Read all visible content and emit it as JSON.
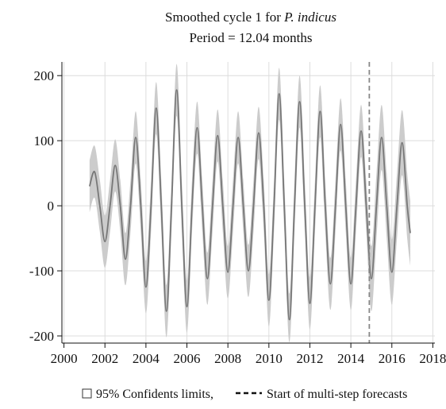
{
  "chart_data": {
    "type": "line",
    "title": {
      "text": "Smoothed cycle 1 for",
      "species": "P. indicus"
    },
    "subtitle": "Period = 12.04 months",
    "x": [
      2001.25,
      2001.5,
      2001.75,
      2002.0,
      2002.25,
      2002.5,
      2002.75,
      2003.0,
      2003.25,
      2003.5,
      2003.75,
      2004.0,
      2004.25,
      2004.5,
      2004.75,
      2005.0,
      2005.25,
      2005.5,
      2005.75,
      2006.0,
      2006.25,
      2006.5,
      2006.75,
      2007.0,
      2007.25,
      2007.5,
      2007.75,
      2008.0,
      2008.25,
      2008.5,
      2008.75,
      2009.0,
      2009.25,
      2009.5,
      2009.75,
      2010.0,
      2010.25,
      2010.5,
      2010.75,
      2011.0,
      2011.25,
      2011.5,
      2011.75,
      2012.0,
      2012.25,
      2012.5,
      2012.75,
      2013.0,
      2013.25,
      2013.5,
      2013.75,
      2014.0,
      2014.25,
      2014.5,
      2014.75,
      2015.0,
      2015.25,
      2015.5,
      2015.75,
      2016.0,
      2016.25,
      2016.5,
      2016.75,
      2016.9
    ],
    "values": [
      30,
      52,
      0,
      -55,
      0,
      62,
      0,
      -82,
      0,
      105,
      0,
      -125,
      0,
      150,
      0,
      -162,
      0,
      178,
      0,
      -155,
      0,
      120,
      0,
      -112,
      0,
      108,
      0,
      -102,
      0,
      105,
      0,
      -100,
      0,
      112,
      0,
      -145,
      0,
      172,
      0,
      -175,
      0,
      160,
      0,
      -150,
      0,
      145,
      0,
      -120,
      0,
      125,
      0,
      -120,
      0,
      115,
      0,
      -112,
      0,
      105,
      0,
      -102,
      0,
      97,
      0,
      -42
    ],
    "color": "#777777",
    "band": {
      "name": "95% Confidents limits,",
      "color": "#cccccc",
      "upper": [
        70,
        92,
        40,
        -15,
        40,
        102,
        40,
        -42,
        40,
        145,
        40,
        -85,
        40,
        190,
        40,
        -122,
        40,
        218,
        40,
        -115,
        40,
        160,
        40,
        -72,
        40,
        148,
        40,
        -62,
        40,
        145,
        40,
        -60,
        40,
        152,
        40,
        -105,
        40,
        212,
        40,
        -135,
        40,
        200,
        40,
        -110,
        40,
        185,
        40,
        -80,
        40,
        165,
        40,
        -80,
        40,
        155,
        40,
        -62,
        50,
        155,
        50,
        -52,
        50,
        147,
        50,
        8
      ],
      "lower": [
        -10,
        12,
        -40,
        -95,
        -40,
        22,
        -40,
        -122,
        -40,
        65,
        -40,
        -165,
        -40,
        110,
        -40,
        -202,
        -40,
        138,
        -40,
        -195,
        -40,
        80,
        -40,
        -152,
        -40,
        68,
        -40,
        -142,
        -40,
        65,
        -40,
        -140,
        -40,
        72,
        -40,
        -185,
        -40,
        132,
        -40,
        -210,
        -40,
        120,
        -40,
        -190,
        -40,
        105,
        -40,
        -160,
        -40,
        85,
        -40,
        -160,
        -40,
        75,
        -40,
        -162,
        -50,
        55,
        -50,
        -152,
        -50,
        47,
        -50,
        -92
      ]
    },
    "forecast_start": {
      "x": 2014.9,
      "label": "Start of multi-step forecasts",
      "color": "#888888"
    },
    "xlim": [
      1999.9,
      2018.1
    ],
    "ylim": [
      -211,
      221
    ],
    "xticks": [
      2000,
      2002,
      2004,
      2006,
      2008,
      2010,
      2012,
      2014,
      2016,
      2018
    ],
    "yticks": [
      -200,
      -100,
      0,
      100,
      200
    ],
    "grid": true
  }
}
